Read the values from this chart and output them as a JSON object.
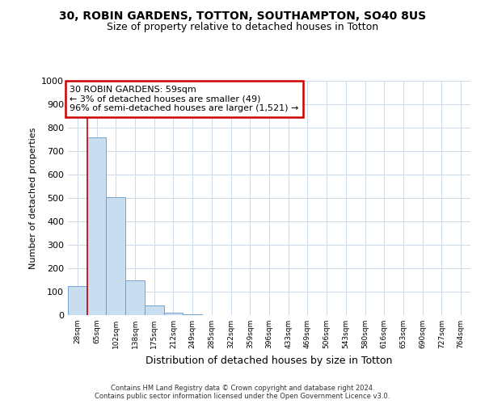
{
  "title_line1": "30, ROBIN GARDENS, TOTTON, SOUTHAMPTON, SO40 8US",
  "title_line2": "Size of property relative to detached houses in Totton",
  "xlabel": "Distribution of detached houses by size in Totton",
  "ylabel": "Number of detached properties",
  "bar_labels": [
    "28sqm",
    "65sqm",
    "102sqm",
    "138sqm",
    "175sqm",
    "212sqm",
    "249sqm",
    "285sqm",
    "322sqm",
    "359sqm",
    "396sqm",
    "433sqm",
    "469sqm",
    "506sqm",
    "543sqm",
    "580sqm",
    "616sqm",
    "653sqm",
    "690sqm",
    "727sqm",
    "764sqm"
  ],
  "bar_values": [
    125,
    760,
    505,
    150,
    40,
    10,
    2,
    0,
    0,
    0,
    0,
    0,
    0,
    0,
    0,
    0,
    0,
    0,
    0,
    0,
    0
  ],
  "bar_color": "#c9ddf0",
  "bar_edge_color": "#6699cc",
  "ylim": [
    0,
    1000
  ],
  "yticks": [
    0,
    100,
    200,
    300,
    400,
    500,
    600,
    700,
    800,
    900,
    1000
  ],
  "red_line_x": 0.52,
  "annotation_text_line1": "30 ROBIN GARDENS: 59sqm",
  "annotation_text_line2": "← 3% of detached houses are smaller (49)",
  "annotation_text_line3": "96% of semi-detached houses are larger (1,521) →",
  "annotation_box_color": "#ffffff",
  "annotation_border_color": "#cc0000",
  "footer_line1": "Contains HM Land Registry data © Crown copyright and database right 2024.",
  "footer_line2": "Contains public sector information licensed under the Open Government Licence v3.0.",
  "background_color": "#ffffff",
  "grid_color": "#ccd9e8"
}
